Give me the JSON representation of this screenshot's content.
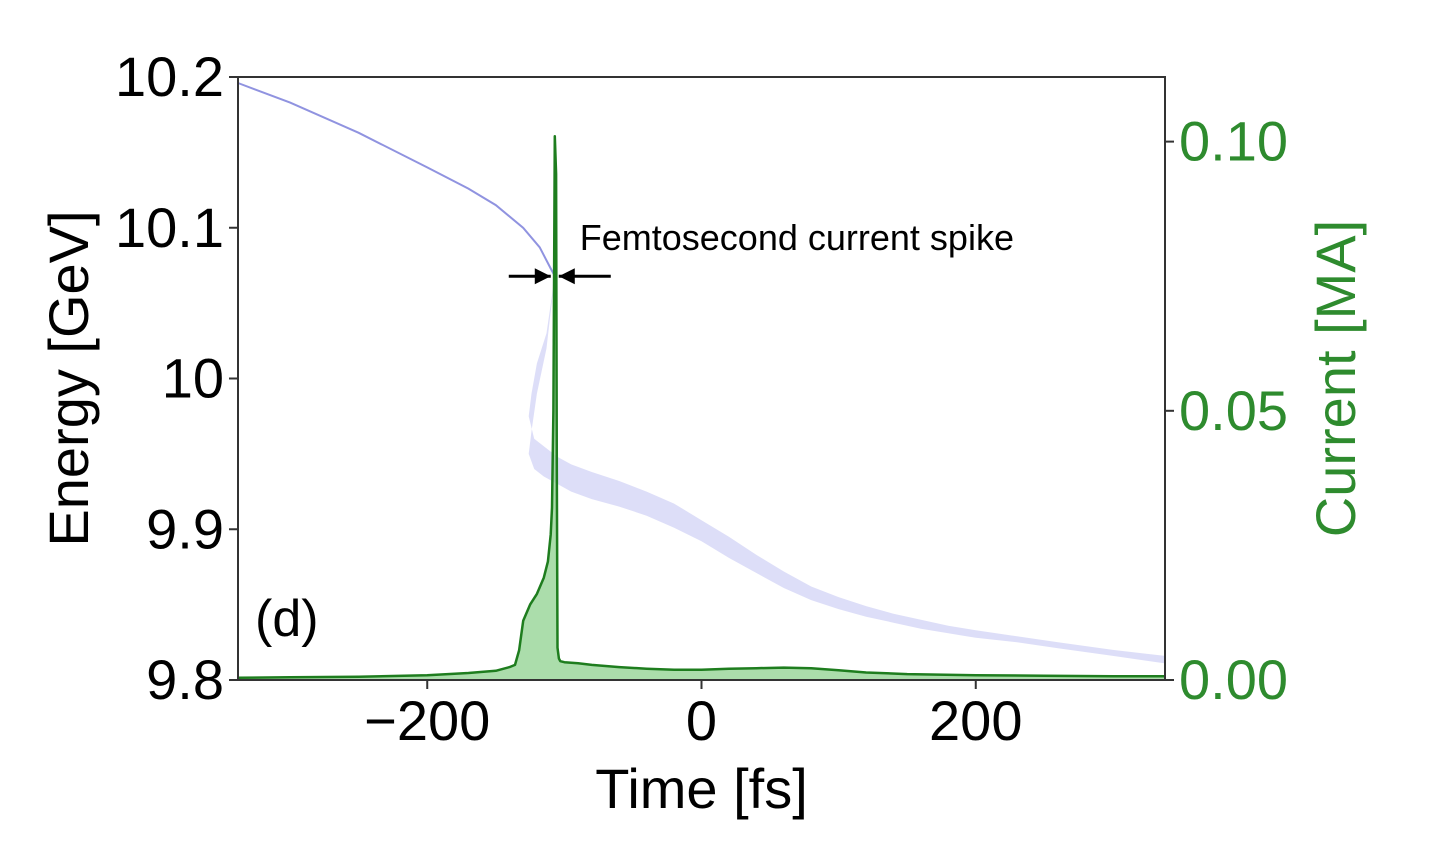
{
  "chart_data": {
    "type": "line",
    "panel_label": "(d)",
    "xlabel": "Time [fs]",
    "ylabel_left": "Energy [GeV]",
    "ylabel_right": "Current [MA]",
    "xlim": [
      -338,
      338
    ],
    "ylim_left": [
      9.8,
      10.2
    ],
    "ylim_right": [
      0.0,
      0.112
    ],
    "xticks": [
      -200,
      0,
      200
    ],
    "xtick_labels": [
      "−200",
      "0",
      "200"
    ],
    "yticks_left": [
      9.8,
      9.9,
      10.0,
      10.1,
      10.2
    ],
    "ytick_labels_left": [
      "9.8",
      "9.9",
      "10",
      "10.1",
      "10.2"
    ],
    "yticks_right": [
      0.0,
      0.05,
      0.1
    ],
    "ytick_labels_right": [
      "0.00",
      "0.05",
      "0.10"
    ],
    "annotation": {
      "text": "Femtosecond current spike",
      "x": -107,
      "y_right": 0.075
    },
    "colors": {
      "energy": "#6b6fd6",
      "energy_band": "#b3b5f0",
      "current": "#1e7d1e",
      "current_fill": "#8fd18f",
      "right_axis": "#2e8b2e"
    },
    "series": [
      {
        "role": "energy",
        "axis": "left",
        "x": [
          -338,
          -300,
          -250,
          -200,
          -170,
          -150,
          -130,
          -118,
          -110,
          -107
        ],
        "y": [
          10.196,
          10.183,
          10.163,
          10.14,
          10.126,
          10.115,
          10.1,
          10.087,
          10.073,
          10.068
        ]
      },
      {
        "role": "energy_band",
        "axis": "left",
        "x": [
          -107,
          -113,
          -120,
          -124,
          -126,
          -122,
          -115,
          -105,
          -95,
          -80,
          -60,
          -40,
          -20,
          0,
          20,
          40,
          60,
          80,
          100,
          120,
          140,
          160,
          180,
          200,
          230,
          260,
          300,
          338
        ],
        "y_upper": [
          10.068,
          10.03,
          10.01,
          9.99,
          9.975,
          9.96,
          9.955,
          9.948,
          9.943,
          9.938,
          9.932,
          9.925,
          9.917,
          9.906,
          9.895,
          9.883,
          9.872,
          9.862,
          9.855,
          9.849,
          9.844,
          9.84,
          9.836,
          9.833,
          9.829,
          9.825,
          9.82,
          9.816
        ],
        "y_lower": [
          10.068,
          10.02,
          9.99,
          9.965,
          9.95,
          9.94,
          9.935,
          9.93,
          9.925,
          9.92,
          9.915,
          9.909,
          9.901,
          9.892,
          9.881,
          9.871,
          9.861,
          9.853,
          9.847,
          9.842,
          9.838,
          9.834,
          9.831,
          9.828,
          9.825,
          9.821,
          9.816,
          9.811
        ]
      },
      {
        "role": "current",
        "axis": "right",
        "x": [
          -338,
          -300,
          -250,
          -200,
          -170,
          -150,
          -140,
          -136,
          -133,
          -130,
          -125,
          -120,
          -115,
          -112,
          -110,
          -109,
          -108,
          -107,
          -106,
          -105.5,
          -105,
          -104,
          -103,
          -100,
          -90,
          -80,
          -60,
          -40,
          -20,
          0,
          20,
          40,
          60,
          80,
          100,
          120,
          150,
          200,
          250,
          300,
          338
        ],
        "y": [
          0.0004,
          0.0005,
          0.0006,
          0.0009,
          0.0013,
          0.0017,
          0.0024,
          0.0028,
          0.0055,
          0.011,
          0.014,
          0.016,
          0.019,
          0.022,
          0.027,
          0.032,
          0.05,
          0.101,
          0.094,
          0.04,
          0.006,
          0.004,
          0.0035,
          0.0033,
          0.0031,
          0.0028,
          0.0024,
          0.0021,
          0.0019,
          0.0019,
          0.0021,
          0.0022,
          0.0023,
          0.0022,
          0.0018,
          0.0014,
          0.0011,
          0.0009,
          0.0008,
          0.0007,
          0.0007
        ]
      }
    ]
  }
}
